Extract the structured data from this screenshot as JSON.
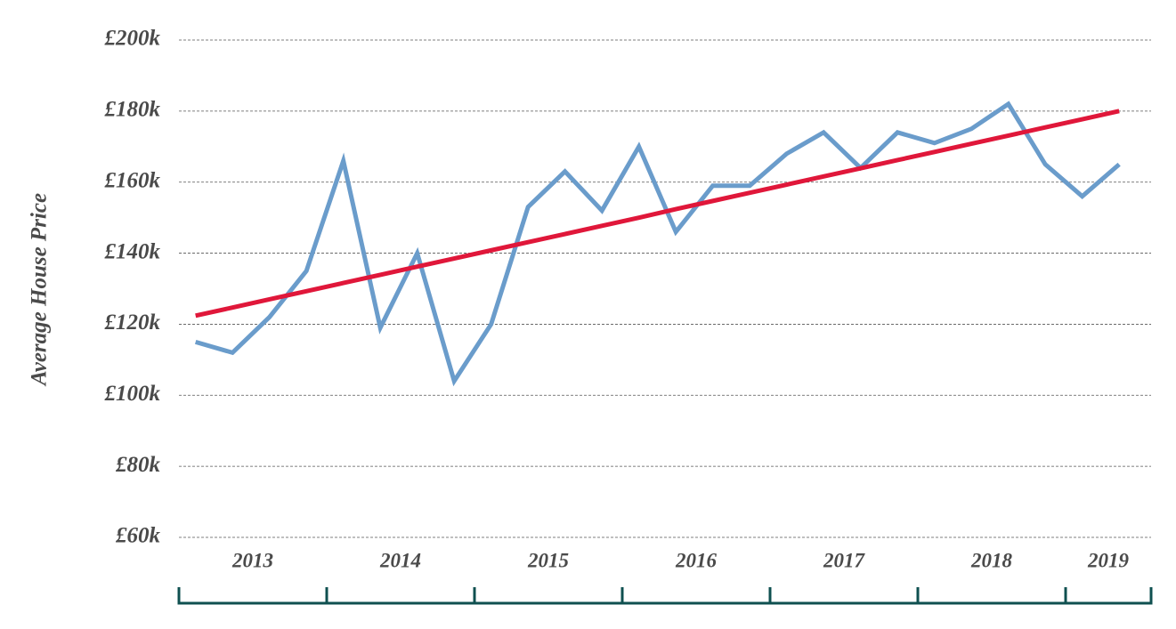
{
  "chart_data": {
    "type": "line",
    "y_label": "Average House Price",
    "x": [
      "2013",
      null,
      null,
      null,
      "2014",
      null,
      null,
      null,
      "2015",
      null,
      null,
      null,
      "2016",
      null,
      null,
      null,
      "2017",
      null,
      null,
      null,
      "2018",
      null,
      null,
      null,
      "2019",
      null
    ],
    "series": [
      {
        "color": "#6a9ccb",
        "values": [
          115,
          112,
          122,
          135,
          166,
          119,
          140,
          104,
          120,
          153,
          163,
          152,
          170,
          146,
          159,
          159,
          168,
          174,
          164,
          174,
          171,
          175,
          182,
          165,
          156,
          165
        ]
      },
      {
        "color": "#e0173a",
        "values": [
          122.4,
          124.7,
          127.0,
          129.3,
          131.6,
          133.9,
          136.2,
          138.5,
          140.8,
          143.1,
          145.4,
          147.7,
          150.0,
          152.4,
          154.7,
          157.0,
          159.3,
          161.6,
          163.9,
          166.2,
          168.5,
          170.8,
          173.1,
          175.4,
          177.7,
          180.0
        ]
      }
    ],
    "ylim": [
      60,
      200
    ],
    "yticks": [
      {
        "value": 60,
        "label": "£60k"
      },
      {
        "value": 80,
        "label": "£80k"
      },
      {
        "value": 100,
        "label": "£100k"
      },
      {
        "value": 120,
        "label": "£120k"
      },
      {
        "value": 140,
        "label": "£140k"
      },
      {
        "value": 160,
        "label": "£160k"
      },
      {
        "value": 180,
        "label": "£180k"
      },
      {
        "value": 200,
        "label": "£200k"
      }
    ],
    "grid": true
  }
}
